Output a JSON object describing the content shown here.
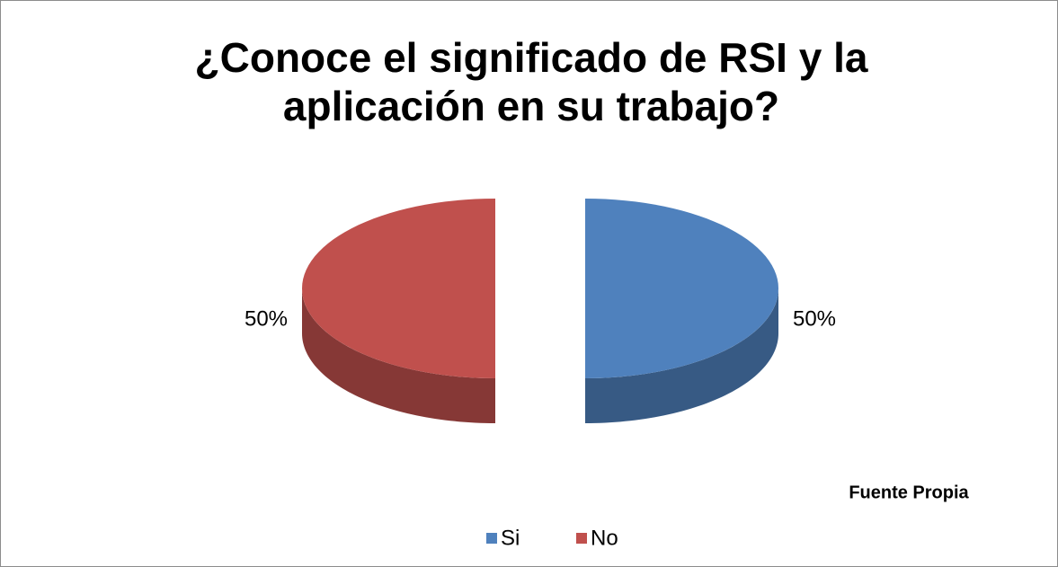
{
  "chart_data": {
    "type": "pie",
    "title": "¿Conoce el significado de RSI y la aplicación en su trabajo?",
    "categories": [
      "Si",
      "No"
    ],
    "values": [
      50,
      50
    ],
    "value_labels": [
      "50%",
      "50%"
    ],
    "colors": [
      "#4f81bd",
      "#c0504d"
    ],
    "annotation": "Fuente Propia",
    "legend": "bottom"
  }
}
